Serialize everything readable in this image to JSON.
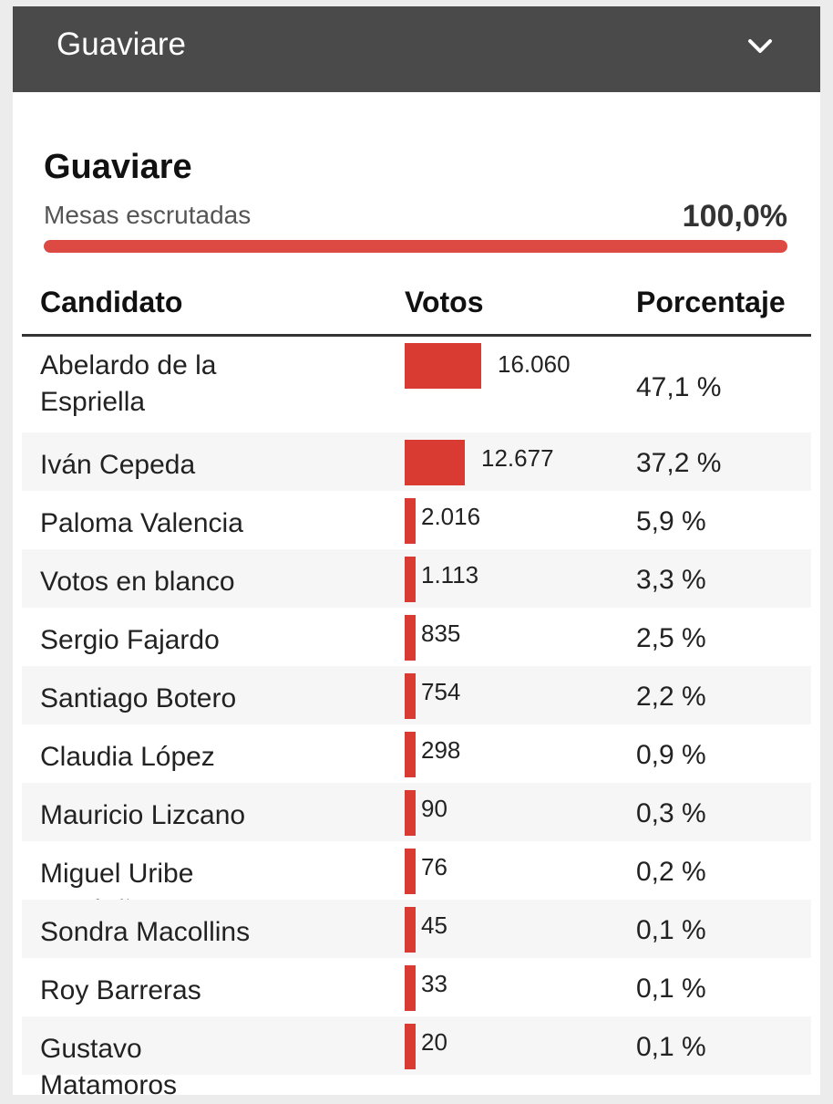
{
  "header": {
    "dropdown_value": "Guaviare",
    "toggle_icon": "chevron-down-icon"
  },
  "summary": {
    "region": "Guaviare",
    "mesas_label": "Mesas escrutadas",
    "mesas_value": "100,0%",
    "mesas_fraction": 1.0
  },
  "colors": {
    "bar": "#d93a32",
    "progress": "#dd4a43",
    "header_bg": "#4a4a4a"
  },
  "table": {
    "headers": {
      "candidate": "Candidato",
      "votes": "Votos",
      "percentage": "Porcentaje"
    },
    "rows": [
      {
        "name": "Abelardo de la Espriella",
        "votes": "16.060",
        "votes_num": 16060,
        "pct": "47,1 %"
      },
      {
        "name": "Iván Cepeda",
        "votes": "12.677",
        "votes_num": 12677,
        "pct": "37,2 %"
      },
      {
        "name": "Paloma Valencia",
        "votes": "2.016",
        "votes_num": 2016,
        "pct": "5,9 %"
      },
      {
        "name": "Votos en blanco",
        "votes": "1.113",
        "votes_num": 1113,
        "pct": "3,3 %"
      },
      {
        "name": "Sergio Fajardo",
        "votes": "835",
        "votes_num": 835,
        "pct": "2,5 %"
      },
      {
        "name": "Santiago Botero",
        "votes": "754",
        "votes_num": 754,
        "pct": "2,2 %"
      },
      {
        "name": "Claudia López",
        "votes": "298",
        "votes_num": 298,
        "pct": "0,9 %"
      },
      {
        "name": "Mauricio Lizcano",
        "votes": "90",
        "votes_num": 90,
        "pct": "0,3 %"
      },
      {
        "name": "Miguel Uribe Londoño",
        "votes": "76",
        "votes_num": 76,
        "pct": "0,2 %"
      },
      {
        "name": "Sondra Macollins",
        "votes": "45",
        "votes_num": 45,
        "pct": "0,1 %"
      },
      {
        "name": "Roy Barreras",
        "votes": "33",
        "votes_num": 33,
        "pct": "0,1 %"
      },
      {
        "name": "Gustavo Matamoros",
        "votes": "20",
        "votes_num": 20,
        "pct": "0,1 %"
      }
    ]
  }
}
